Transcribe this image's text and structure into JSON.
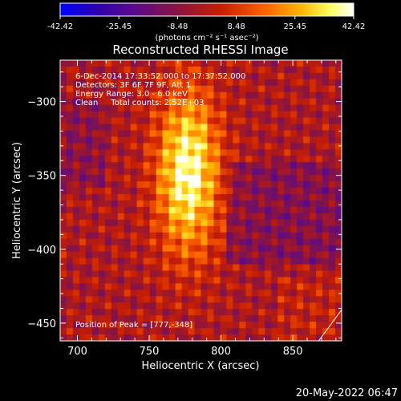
{
  "chart_data": {
    "type": "heatmap",
    "title": "Reconstructed RHESSI Image",
    "xlabel": "Heliocentric X (arcsec)",
    "ylabel": "Heliocentric Y (arcsec)",
    "xlim": [
      688,
      884
    ],
    "ylim": [
      -462,
      -272
    ],
    "xticks": [
      700,
      750,
      800,
      850
    ],
    "yticks": [
      -300,
      -350,
      -400,
      -450
    ],
    "colorbar": {
      "range": [
        -42.42,
        42.42
      ],
      "ticks": [
        "-42.42",
        "-25.45",
        "-8.48",
        "8.48",
        "25.45",
        "42.42"
      ],
      "unit_label": "(photons cm⁻² s⁻¹ asec⁻²)",
      "colormap": [
        "#0000ff",
        "#2a00b0",
        "#5a0a8a",
        "#8a1440",
        "#c81e00",
        "#ff6400",
        "#ffb400",
        "#ffff60",
        "#ffffff"
      ]
    },
    "info_lines": [
      "6-Dec-2014 17:33:52.000 to 17:37:52.000",
      "Detectors: 3F 6F 7F 9F, Att 1",
      "Energy Range: 3.0 - 6.0 keV",
      "Clean     Total counts: 2.52E+03"
    ],
    "peak_label": "Position of Peak = [777,-348]",
    "peak": {
      "x": 777,
      "y": -348
    },
    "limb_points": [
      [
        884,
        -441
      ],
      [
        868,
        -462
      ]
    ]
  },
  "footer_date": "20-May-2022 06:47"
}
